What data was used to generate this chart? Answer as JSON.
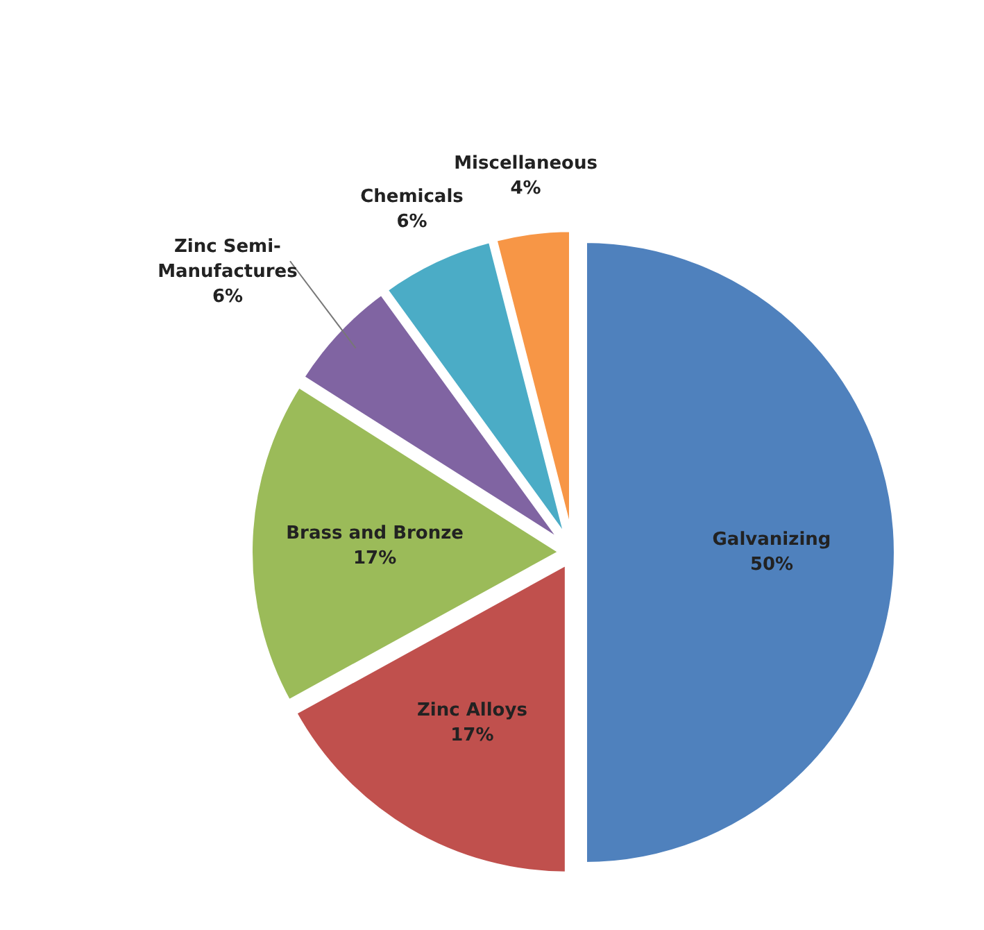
{
  "chart_data": {
    "type": "pie",
    "categories": [
      "Galvanizing",
      "Zinc Alloys",
      "Brass and Bronze",
      "Zinc Semi-Manufactures",
      "Chemicals",
      "Miscellaneous"
    ],
    "values": [
      50,
      17,
      17,
      6,
      6,
      4
    ],
    "colors": [
      "#4f81bd",
      "#c0504d",
      "#9bbb59",
      "#8064a2",
      "#4bacc6",
      "#f79646"
    ],
    "value_labels": [
      "50%",
      "17%",
      "17%",
      "6%",
      "6%",
      "4%"
    ]
  }
}
